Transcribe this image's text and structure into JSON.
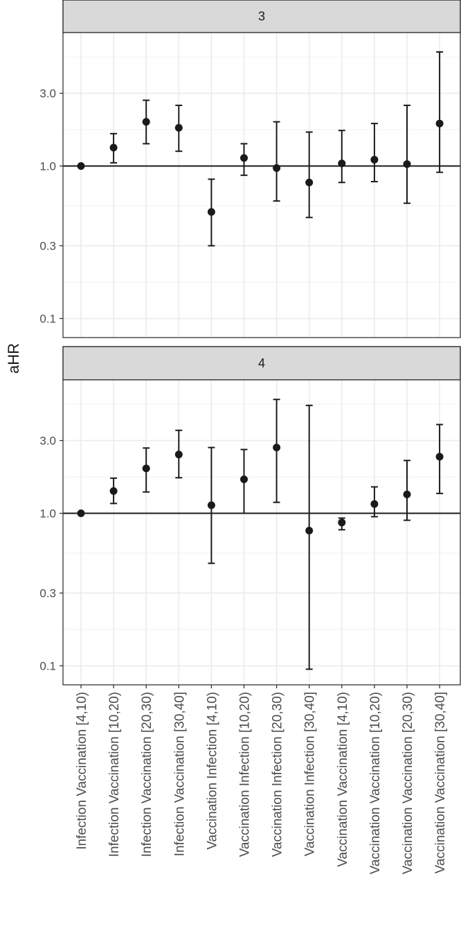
{
  "chart_data": {
    "type": "scatter",
    "ylabel": "aHR",
    "y_scale": "log",
    "ylim": [
      0.075,
      7.5
    ],
    "y_ticks": [
      0.1,
      0.3,
      1.0,
      3.0
    ],
    "y_tick_labels": [
      "0.1",
      "0.3",
      "1.0",
      "3.0"
    ],
    "reference_line": 1.0,
    "grid": true,
    "categories": [
      "Infection Vaccination [4,10)",
      "Infection Vaccination [10,20)",
      "Infection Vaccination [20,30)",
      "Infection Vaccination [30,40]",
      "Vaccination Infection [4,10)",
      "Vaccination Infection [10,20)",
      "Vaccination Infection [20,30)",
      "Vaccination Infection [30,40]",
      "Vaccination Vaccination [4,10)",
      "Vaccination Vaccination [10,20)",
      "Vaccination Vaccination [20,30)",
      "Vaccination Vaccination [30,40]"
    ],
    "panels": [
      {
        "label": "3",
        "estimate": [
          1.0,
          1.32,
          1.95,
          1.78,
          0.5,
          1.13,
          0.97,
          0.78,
          1.04,
          1.1,
          1.03,
          1.9
        ],
        "lower": [
          1.0,
          1.05,
          1.4,
          1.25,
          0.3,
          0.87,
          0.59,
          0.46,
          0.78,
          0.79,
          0.57,
          0.91
        ],
        "upper": [
          1.0,
          1.63,
          2.7,
          2.5,
          0.82,
          1.4,
          1.95,
          1.67,
          1.71,
          1.9,
          2.5,
          5.6
        ]
      },
      {
        "label": "4",
        "estimate": [
          1.0,
          1.4,
          1.97,
          2.43,
          1.13,
          1.67,
          2.7,
          0.77,
          0.87,
          1.15,
          1.33,
          2.35
        ],
        "lower": [
          1.0,
          1.16,
          1.38,
          1.71,
          0.47,
          1.0,
          1.18,
          0.095,
          0.78,
          0.95,
          0.9,
          1.35
        ],
        "upper": [
          1.0,
          1.7,
          2.68,
          3.5,
          2.7,
          2.62,
          5.58,
          5.1,
          0.93,
          1.49,
          2.22,
          3.82
        ]
      }
    ]
  }
}
